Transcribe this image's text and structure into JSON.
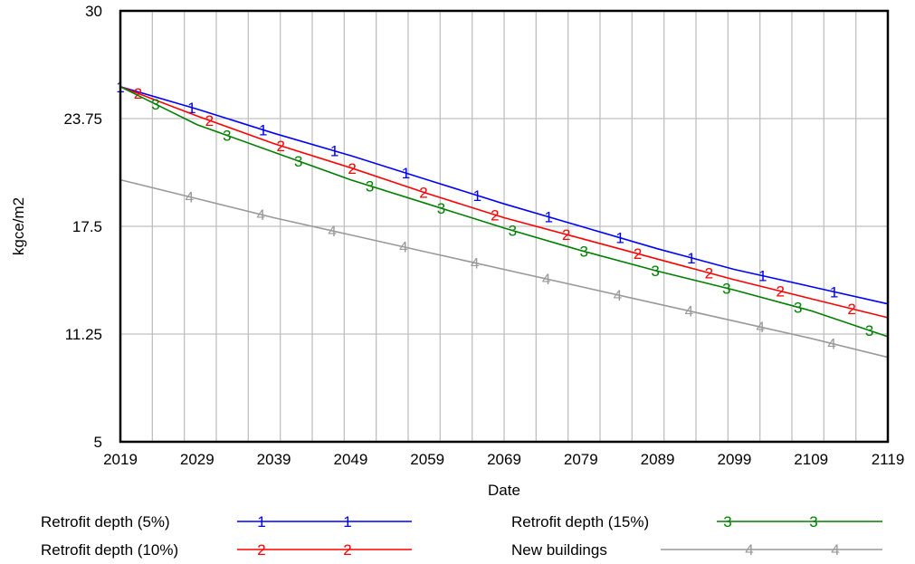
{
  "chart_data": {
    "type": "line",
    "xlabel": "Date",
    "ylabel": "kgce/m2",
    "xlim": [
      2019,
      2119
    ],
    "ylim": [
      5,
      30
    ],
    "x_ticks": [
      "2019",
      "2029",
      "2039",
      "2049",
      "2059",
      "2069",
      "2079",
      "2089",
      "2099",
      "2109",
      "2119"
    ],
    "y_ticks": [
      "5",
      "11.25",
      "17.5",
      "23.75",
      "30"
    ],
    "grid": true,
    "legend_position": "bottom",
    "x": [
      2019,
      2029,
      2039,
      2049,
      2059,
      2069,
      2079,
      2089,
      2099,
      2109,
      2119
    ],
    "series": [
      {
        "name": "Retrofit depth (5%)",
        "marker": "1",
        "color": "#0000ff",
        "values": [
          25.6,
          24.3,
          22.9,
          21.6,
          20.2,
          18.8,
          17.5,
          16.2,
          15.0,
          14.0,
          13.0
        ]
      },
      {
        "name": "Retrofit depth (10%)",
        "marker": "2",
        "color": "#ff0000",
        "values": [
          25.6,
          23.9,
          22.3,
          20.9,
          19.4,
          18.0,
          16.8,
          15.6,
          14.4,
          13.3,
          12.2
        ]
      },
      {
        "name": "Retrofit depth (15%)",
        "marker": "3",
        "color": "#008000",
        "values": [
          25.6,
          23.4,
          21.8,
          20.2,
          18.8,
          17.4,
          16.1,
          14.9,
          13.8,
          12.6,
          11.1
        ]
      },
      {
        "name": "New buildings",
        "marker": "4",
        "color": "#999999",
        "values": [
          20.2,
          19.1,
          18.0,
          17.0,
          16.0,
          15.0,
          14.0,
          13.0,
          12.0,
          11.0,
          9.9
        ]
      }
    ]
  }
}
